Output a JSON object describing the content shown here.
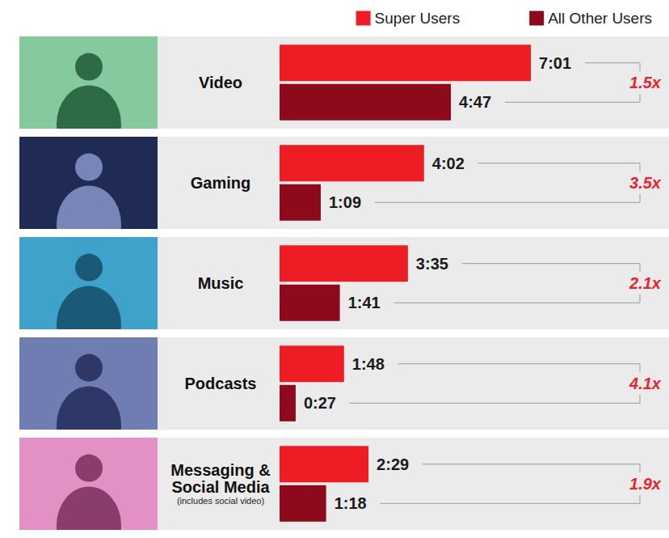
{
  "chart_data": {
    "type": "bar",
    "orientation": "horizontal",
    "categories": [
      "Video",
      "Gaming",
      "Music",
      "Podcasts",
      "Messaging & Social Media"
    ],
    "category_notes": [
      null,
      null,
      null,
      null,
      "(includes social video)"
    ],
    "series": [
      {
        "name": "Super Users",
        "color": "#ee1c25",
        "values": [
          421,
          242,
          215,
          108,
          149
        ],
        "value_labels": [
          "7:01",
          "4:02",
          "3:35",
          "1:48",
          "2:29"
        ]
      },
      {
        "name": "All Other Users",
        "color": "#8c0a1c",
        "values": [
          287,
          69,
          101,
          27,
          78
        ],
        "value_labels": [
          "4:47",
          "1:09",
          "1:41",
          "0:27",
          "1:18"
        ]
      }
    ],
    "annotations": [
      "1.5x",
      "3.5x",
      "2.1x",
      "4.1x",
      "1.9x"
    ],
    "xlim": [
      0,
      540
    ],
    "data_labels": true,
    "tick_labels": false,
    "grid": false,
    "legend": "top-right"
  }
}
